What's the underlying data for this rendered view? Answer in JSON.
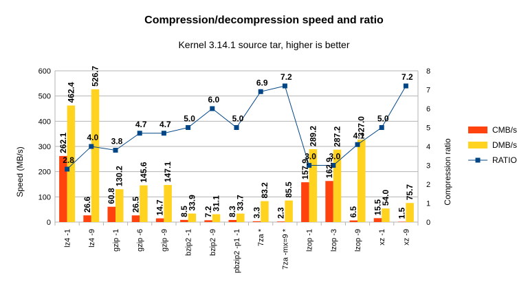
{
  "chart_data": {
    "type": "bar",
    "title": "Compression/decompression speed and ratio",
    "subtitle": "Kernel 3.14.1 source tar, higher is better",
    "ylabel": "Speed (MB/s)",
    "y2label": "Compression ratio",
    "ylim": [
      0,
      600
    ],
    "y2lim": [
      0,
      8
    ],
    "yticks": [
      "0",
      "100",
      "200",
      "300",
      "400",
      "500",
      "600"
    ],
    "y2ticks": [
      "0",
      "1",
      "2",
      "3",
      "4",
      "5",
      "6",
      "7",
      "8"
    ],
    "grid": "horizontal",
    "legend_position": "right",
    "categories": [
      "lz4 -1",
      "lz4 -9",
      "gzip -1",
      "gzip -6",
      "gzip -9",
      "bzip2 -1",
      "bzip2 -9",
      "pbzip2 -p1 -1",
      "7za *",
      "7za -mx=9 *",
      "lzop -1",
      "lzop -3",
      "lzop -9",
      "xz -1",
      "xz -9"
    ],
    "series": [
      {
        "name": "CMB/s",
        "type": "bar",
        "color": "#ff420e",
        "values": [
          262.1,
          26.6,
          60.8,
          26.5,
          14.7,
          8.5,
          7.2,
          8.3,
          3.3,
          2.3,
          157.9,
          162.9,
          6.5,
          15.5,
          1.5
        ],
        "labels": [
          "262.1",
          "26.6",
          "60.8",
          "26.5",
          "14.7",
          "8.5",
          "7.2",
          "8.3",
          "3.3",
          "2.3",
          "157.9",
          "162.9",
          "6.5",
          "15.5",
          "1.5"
        ]
      },
      {
        "name": "DMB/s",
        "type": "bar",
        "color": "#ffd320",
        "values": [
          462.4,
          526.7,
          130.2,
          145.6,
          147.1,
          33.9,
          31.1,
          33.7,
          83.2,
          85.5,
          289.2,
          287.2,
          327.0,
          54.0,
          75.7
        ],
        "labels": [
          "462.4",
          "526.7",
          "130.2",
          "145.6",
          "147.1",
          "33.9",
          "31.1",
          "33.7",
          "83.2",
          "85.5",
          "289.2",
          "287.2",
          "327.0",
          "54.0",
          "75.7"
        ]
      },
      {
        "name": "RATIO",
        "type": "line",
        "axis": "secondary",
        "color": "#004586",
        "values": [
          2.8,
          4.0,
          3.8,
          4.7,
          4.7,
          5.0,
          6.0,
          5.0,
          6.9,
          7.2,
          3.0,
          3.0,
          4.1,
          5.0,
          7.2
        ],
        "labels": [
          "2.8",
          "4.0",
          "3.8",
          "4.7",
          "4.7",
          "5.0",
          "6.0",
          "5.0",
          "6.9",
          "7.2",
          "3.0",
          "3.0",
          "4.1",
          "5.0",
          "7.2"
        ]
      }
    ]
  }
}
